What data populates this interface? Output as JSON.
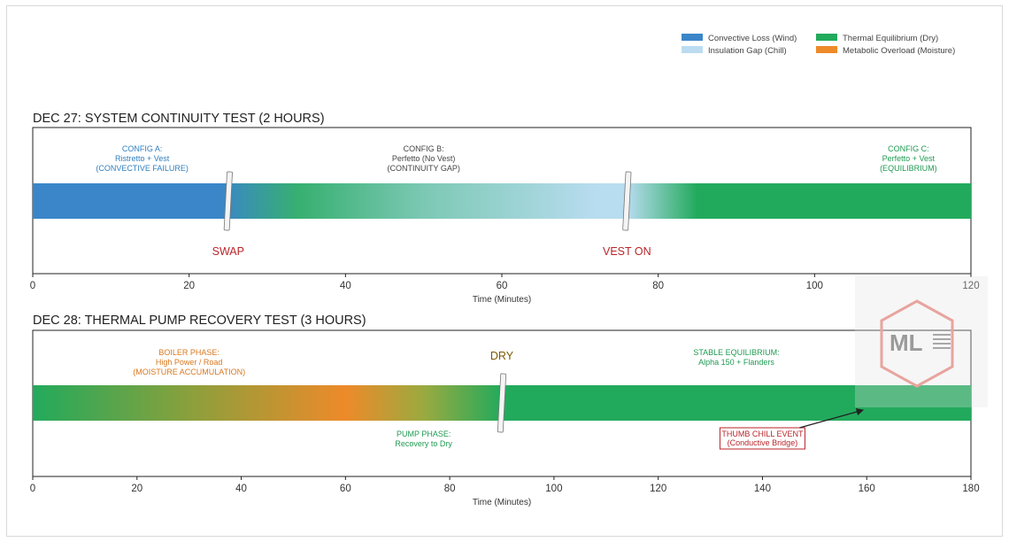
{
  "legend": [
    {
      "label": "Convective Loss (Wind)",
      "color": "#3a86c8"
    },
    {
      "label": "Thermal Equilibrium (Dry)",
      "color": "#22aa5c"
    },
    {
      "label": "Insulation Gap (Chill)",
      "color": "#bcdcf2"
    },
    {
      "label": "Metabolic Overload (Moisture)",
      "color": "#ee8a2a"
    }
  ],
  "chart_data": [
    {
      "type": "timeline",
      "title": "DEC 27: SYSTEM CONTINUITY TEST (2 HOURS)",
      "xlabel": "Time (Minutes)",
      "xlim": [
        0,
        120
      ],
      "xticks": [
        0,
        20,
        40,
        60,
        80,
        100,
        120
      ],
      "gradient": [
        {
          "t": 0,
          "color": "#3a86c8"
        },
        {
          "t": 24,
          "color": "#3a86c8"
        },
        {
          "t": 34,
          "color": "#37b070"
        },
        {
          "t": 50,
          "color": "#7cc8b4"
        },
        {
          "t": 72,
          "color": "#b8dcf0"
        },
        {
          "t": 76,
          "color": "#b8dcf0"
        },
        {
          "t": 85,
          "color": "#22aa5c"
        },
        {
          "t": 120,
          "color": "#22aa5c"
        }
      ],
      "annotations": [
        {
          "lines": [
            "CONFIG A:",
            "Ristretto + Vest",
            "(CONVECTIVE FAILURE)"
          ],
          "t": 14,
          "pos": "above",
          "color": "#2f7fbf"
        },
        {
          "lines": [
            "CONFIG B:",
            "Perfetto (No Vest)",
            "(CONTINUITY GAP)"
          ],
          "t": 50,
          "pos": "above",
          "color": "#444444"
        },
        {
          "lines": [
            "CONFIG C:",
            "Perfetto + Vest",
            "(EQUILIBRIUM)"
          ],
          "t": 112,
          "pos": "above",
          "color": "#1f9a52"
        }
      ],
      "markers": [
        {
          "label": "SWAP",
          "t": 25,
          "pos": "below",
          "color": "#b8252a"
        },
        {
          "label": "VEST ON",
          "t": 76,
          "pos": "below",
          "color": "#b8252a"
        }
      ]
    },
    {
      "type": "timeline",
      "title": "DEC 28: THERMAL PUMP RECOVERY TEST (3 HOURS)",
      "xlabel": "Time (Minutes)",
      "xlim": [
        0,
        180
      ],
      "xticks": [
        0,
        20,
        40,
        60,
        80,
        100,
        120,
        140,
        160,
        180
      ],
      "gradient": [
        {
          "t": 0,
          "color": "#22aa5c"
        },
        {
          "t": 30,
          "color": "#8aa03c"
        },
        {
          "t": 60,
          "color": "#ee8a2a"
        },
        {
          "t": 75,
          "color": "#9aaa40"
        },
        {
          "t": 90,
          "color": "#22aa5c"
        },
        {
          "t": 180,
          "color": "#22aa5c"
        }
      ],
      "annotations": [
        {
          "lines": [
            "BOILER PHASE:",
            "High Power / Road",
            "(MOISTURE ACCUMULATION)"
          ],
          "t": 30,
          "pos": "above",
          "color": "#d9771e"
        },
        {
          "lines": [
            "STABLE EQUILIBRIUM:",
            "Alpha 150 + Flanders"
          ],
          "t": 135,
          "pos": "above",
          "color": "#1f9a52"
        },
        {
          "lines": [
            "PUMP PHASE:",
            "Recovery to Dry"
          ],
          "t": 75,
          "pos": "below",
          "color": "#1f9a52"
        }
      ],
      "markers": [
        {
          "label": "DRY",
          "t": 90,
          "pos": "above",
          "color": "#7a5a00"
        }
      ],
      "callout": {
        "lines": [
          "THUMB CHILL EVENT",
          "(Conductive Bridge)"
        ],
        "t_box": 140,
        "t_arrow": 160,
        "color": "#b8252a"
      }
    }
  ],
  "watermark": {
    "text": "ML"
  }
}
